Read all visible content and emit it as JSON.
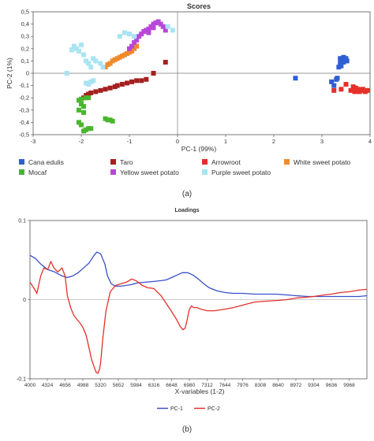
{
  "panel_a_label": "(a)",
  "panel_b_label": "(b)",
  "chart_data": [
    {
      "type": "scatter",
      "title": "Scores",
      "xlabel": "PC-1 (99%)",
      "ylabel": "PC-2 (1%)",
      "xlim": [
        -3,
        4
      ],
      "ylim": [
        -0.5,
        0.5
      ],
      "x_ticks": [
        -3,
        -2,
        -1,
        0,
        1,
        2,
        3,
        4
      ],
      "y_ticks": [
        -0.5,
        -0.4,
        -0.3,
        -0.2,
        -0.1,
        0,
        0.1,
        0.2,
        0.3,
        0.4,
        0.5
      ],
      "x_tick_labels": [
        "-3",
        "-2",
        "-1",
        "0",
        "1",
        "2",
        "3",
        "4"
      ],
      "y_tick_labels": [
        "-0,5",
        "-0,4",
        "-0,3",
        "-0,2",
        "-0,1",
        "0",
        "0,1",
        "0,2",
        "0,3",
        "0,4",
        "0,5"
      ],
      "grid": false,
      "zero_lines": true,
      "legend_position": "bottom",
      "series": [
        {
          "name": "Cana edulis",
          "color": "#2e5fd6",
          "points": [
            [
              2.45,
              -0.04
            ],
            [
              3.2,
              -0.07
            ],
            [
              3.25,
              -0.1
            ],
            [
              3.3,
              -0.05
            ],
            [
              3.32,
              -0.04
            ],
            [
              3.35,
              0.05
            ],
            [
              3.38,
              0.08
            ],
            [
              3.4,
              0.1
            ],
            [
              3.42,
              0.12
            ],
            [
              3.45,
              0.13
            ],
            [
              3.48,
              0.11
            ],
            [
              3.5,
              0.12
            ],
            [
              3.4,
              0.06
            ],
            [
              3.45,
              0.09
            ],
            [
              3.52,
              0.1
            ],
            [
              3.38,
              0.12
            ]
          ]
        },
        {
          "name": "Taro",
          "color": "#a5201f",
          "points": [
            [
              -1.95,
              -0.2
            ],
            [
              -1.9,
              -0.18
            ],
            [
              -1.85,
              -0.17
            ],
            [
              -1.8,
              -0.16
            ],
            [
              -1.7,
              -0.15
            ],
            [
              -1.6,
              -0.14
            ],
            [
              -1.5,
              -0.13
            ],
            [
              -1.4,
              -0.12
            ],
            [
              -1.3,
              -0.11
            ],
            [
              -1.25,
              -0.1
            ],
            [
              -1.15,
              -0.09
            ],
            [
              -1.05,
              -0.08
            ],
            [
              -0.95,
              -0.07
            ],
            [
              -0.85,
              -0.06
            ],
            [
              -0.75,
              -0.06
            ],
            [
              -0.65,
              -0.05
            ],
            [
              -0.5,
              0.0
            ],
            [
              -0.25,
              0.09
            ]
          ]
        },
        {
          "name": "Arrowroot",
          "color": "#e5302a",
          "points": [
            [
              3.25,
              -0.14
            ],
            [
              3.4,
              -0.13
            ],
            [
              3.5,
              -0.09
            ],
            [
              3.6,
              -0.14
            ],
            [
              3.65,
              -0.11
            ],
            [
              3.68,
              -0.15
            ],
            [
              3.7,
              -0.12
            ],
            [
              3.72,
              -0.14
            ],
            [
              3.75,
              -0.13
            ],
            [
              3.78,
              -0.15
            ],
            [
              3.82,
              -0.14
            ],
            [
              3.85,
              -0.13
            ],
            [
              3.9,
              -0.15
            ],
            [
              3.95,
              -0.14
            ]
          ]
        },
        {
          "name": "White sweet potato",
          "color": "#f08a2c",
          "points": [
            [
              -1.5,
              0.05
            ],
            [
              -1.45,
              0.07
            ],
            [
              -1.4,
              0.08
            ],
            [
              -1.35,
              0.1
            ],
            [
              -1.3,
              0.11
            ],
            [
              -1.25,
              0.12
            ],
            [
              -1.2,
              0.13
            ],
            [
              -1.15,
              0.14
            ],
            [
              -1.1,
              0.15
            ],
            [
              -1.05,
              0.16
            ],
            [
              -1.0,
              0.17
            ],
            [
              -0.95,
              0.18
            ],
            [
              -0.9,
              0.2
            ],
            [
              -0.85,
              0.22
            ]
          ]
        },
        {
          "name": "Mocaf",
          "color": "#4ab52f",
          "points": [
            [
              -2.05,
              -0.4
            ],
            [
              -2.0,
              -0.42
            ],
            [
              -1.95,
              -0.47
            ],
            [
              -1.9,
              -0.46
            ],
            [
              -1.85,
              -0.45
            ],
            [
              -1.8,
              -0.45
            ],
            [
              -1.5,
              -0.37
            ],
            [
              -1.45,
              -0.38
            ],
            [
              -1.4,
              -0.38
            ],
            [
              -1.35,
              -0.39
            ],
            [
              -2.0,
              -0.25
            ],
            [
              -1.95,
              -0.27
            ],
            [
              -2.05,
              -0.3
            ],
            [
              -1.95,
              -0.32
            ],
            [
              -2.0,
              -0.21
            ],
            [
              -1.9,
              -0.2
            ],
            [
              -1.85,
              -0.2
            ],
            [
              -2.05,
              -0.22
            ]
          ]
        },
        {
          "name": "Yellow sweet potato",
          "color": "#b847d9",
          "points": [
            [
              -1.0,
              0.2
            ],
            [
              -0.95,
              0.22
            ],
            [
              -0.9,
              0.25
            ],
            [
              -0.85,
              0.27
            ],
            [
              -0.8,
              0.3
            ],
            [
              -0.75,
              0.32
            ],
            [
              -0.7,
              0.34
            ],
            [
              -0.65,
              0.35
            ],
            [
              -0.6,
              0.36
            ],
            [
              -0.55,
              0.38
            ],
            [
              -0.5,
              0.4
            ],
            [
              -0.45,
              0.41
            ],
            [
              -0.4,
              0.42
            ],
            [
              -0.35,
              0.4
            ],
            [
              -0.3,
              0.38
            ],
            [
              -0.25,
              0.35
            ],
            [
              -0.6,
              0.33
            ],
            [
              -0.5,
              0.37
            ]
          ]
        },
        {
          "name": "Purple sweet potato",
          "color": "#a9e4f2",
          "points": [
            [
              -2.3,
              0.0
            ],
            [
              -2.2,
              0.19
            ],
            [
              -2.15,
              0.22
            ],
            [
              -2.1,
              0.2
            ],
            [
              -2.05,
              0.18
            ],
            [
              -2.0,
              0.23
            ],
            [
              -1.95,
              0.15
            ],
            [
              -1.9,
              0.1
            ],
            [
              -1.85,
              0.08
            ],
            [
              -1.8,
              0.05
            ],
            [
              -1.75,
              0.12
            ],
            [
              -1.7,
              0.1
            ],
            [
              -1.6,
              0.08
            ],
            [
              -1.55,
              0.05
            ],
            [
              -1.9,
              -0.08
            ],
            [
              -1.8,
              -0.07
            ],
            [
              -1.75,
              -0.06
            ],
            [
              -1.85,
              -0.09
            ],
            [
              -1.2,
              0.3
            ],
            [
              -1.1,
              0.33
            ],
            [
              -1.0,
              0.32
            ],
            [
              -0.9,
              0.3
            ],
            [
              -0.2,
              0.38
            ],
            [
              -0.1,
              0.35
            ]
          ]
        }
      ]
    },
    {
      "type": "line",
      "title": "Loadings",
      "xlabel": "X-variables (1-2)",
      "ylabel": "",
      "xlim": [
        4000,
        10300
      ],
      "ylim": [
        -0.1,
        0.1
      ],
      "x_ticks": [
        4000,
        4324,
        4656,
        4988,
        5320,
        5652,
        5984,
        6316,
        6648,
        6980,
        7312,
        7644,
        7976,
        8308,
        8640,
        8972,
        9304,
        9636,
        9968
      ],
      "x_tick_labels": [
        "4000",
        "4324",
        "4656",
        "4988",
        "5320",
        "5652",
        "5984",
        "6316",
        "6648",
        "6980",
        "7312",
        "7644",
        "7976",
        "8308",
        "8640",
        "8972",
        "9304",
        "9636",
        "9968"
      ],
      "y_ticks": [
        -0.1,
        0,
        0.1
      ],
      "y_tick_labels": [
        "-0.1",
        "0",
        "0.1"
      ],
      "zero_line": true,
      "legend_position": "bottom",
      "series": [
        {
          "name": "PC-1",
          "color": "#3a4fc9",
          "x": [
            4000,
            4100,
            4200,
            4330,
            4460,
            4600,
            4700,
            4800,
            4900,
            5000,
            5100,
            5200,
            5250,
            5320,
            5400,
            5450,
            5520,
            5600,
            5700,
            5800,
            5900,
            6000,
            6150,
            6316,
            6450,
            6550,
            6650,
            6750,
            6850,
            6950,
            7050,
            7150,
            7250,
            7350,
            7500,
            7650,
            7800,
            7976,
            8200,
            8400,
            8600,
            8800,
            8972,
            9200,
            9450,
            9700,
            9968,
            10150,
            10300
          ],
          "values": [
            0.056,
            0.052,
            0.045,
            0.038,
            0.035,
            0.03,
            0.028,
            0.03,
            0.034,
            0.04,
            0.046,
            0.056,
            0.06,
            0.058,
            0.045,
            0.03,
            0.02,
            0.017,
            0.017,
            0.018,
            0.019,
            0.021,
            0.022,
            0.023,
            0.024,
            0.025,
            0.028,
            0.031,
            0.034,
            0.034,
            0.031,
            0.026,
            0.02,
            0.015,
            0.011,
            0.009,
            0.008,
            0.008,
            0.007,
            0.007,
            0.007,
            0.006,
            0.005,
            0.004,
            0.004,
            0.004,
            0.004,
            0.004,
            0.005
          ]
        },
        {
          "name": "PC-2",
          "color": "#e5302a",
          "x": [
            4000,
            4070,
            4130,
            4200,
            4260,
            4330,
            4390,
            4450,
            4520,
            4600,
            4656,
            4700,
            4760,
            4820,
            4880,
            4940,
            4988,
            5050,
            5100,
            5150,
            5200,
            5240,
            5270,
            5300,
            5320,
            5360,
            5420,
            5500,
            5600,
            5700,
            5800,
            5900,
            5984,
            6100,
            6200,
            6316,
            6450,
            6550,
            6648,
            6740,
            6800,
            6860,
            6900,
            6940,
            6980,
            7020,
            7060,
            7120,
            7200,
            7312,
            7450,
            7644,
            7800,
            7976,
            8200,
            8400,
            8640,
            8800,
            8972,
            9150,
            9304,
            9500,
            9636,
            9800,
            9968,
            10150,
            10300
          ],
          "values": [
            0.022,
            0.015,
            0.008,
            0.03,
            0.04,
            0.038,
            0.048,
            0.04,
            0.035,
            0.04,
            0.03,
            0.005,
            -0.01,
            -0.02,
            -0.025,
            -0.03,
            -0.035,
            -0.045,
            -0.06,
            -0.075,
            -0.085,
            -0.092,
            -0.093,
            -0.088,
            -0.08,
            -0.05,
            -0.015,
            0.01,
            0.018,
            0.02,
            0.022,
            0.026,
            0.024,
            0.018,
            0.015,
            0.014,
            0.005,
            -0.005,
            -0.015,
            -0.025,
            -0.033,
            -0.038,
            -0.036,
            -0.025,
            -0.012,
            -0.008,
            -0.01,
            -0.01,
            -0.012,
            -0.014,
            -0.014,
            -0.012,
            -0.01,
            -0.007,
            -0.003,
            -0.002,
            -0.001,
            0.0,
            0.002,
            0.003,
            0.004,
            0.006,
            0.007,
            0.009,
            0.01,
            0.012,
            0.013
          ]
        }
      ]
    }
  ]
}
